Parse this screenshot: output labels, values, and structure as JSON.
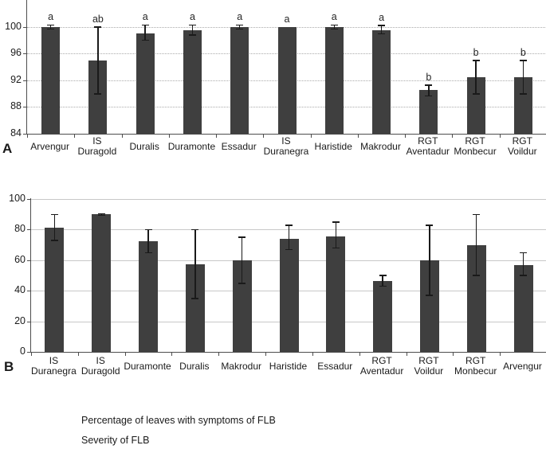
{
  "captions": [
    "Percentage of leaves with symptoms of FLB",
    "Severity of FLB"
  ],
  "colors": {
    "bar": "#3f3f3f",
    "error_bar": "#1a1a1a",
    "axis": "#4d4d4d",
    "grid_dotted": "#aaaaaa",
    "grid_solid": "#c8c8c8",
    "text": "#1a1a1a"
  },
  "chart_data": [
    {
      "type": "bar",
      "panel_label": "A",
      "title": "",
      "xlabel": "",
      "ylabel": "",
      "categories": [
        "Arvengur",
        "IS Duragold",
        "Duralis",
        "Duramonte",
        "Essadur",
        "IS Duranegra",
        "Haristide",
        "Makrodur",
        "RGT Aventadur",
        "RGT Monbecur",
        "RGT Voildur"
      ],
      "values": [
        100,
        95,
        99,
        99.5,
        100,
        100,
        100,
        99.5,
        90.5,
        92.5,
        92.5
      ],
      "errors_minus": [
        0.3,
        5,
        1,
        0.7,
        0.3,
        0,
        0.3,
        0.5,
        0.8,
        2.5,
        2.5
      ],
      "errors_plus": [
        0.3,
        5,
        1.3,
        0.8,
        0.3,
        0,
        0.3,
        0.7,
        0.8,
        2.5,
        2.5
      ],
      "letters": [
        "a",
        "ab",
        "a",
        "a",
        "a",
        "a",
        "a",
        "a",
        "b",
        "b",
        "b"
      ],
      "ylim": [
        84,
        104
      ],
      "yticks": [
        84,
        88,
        92,
        96,
        100
      ],
      "grid_style": "dotted",
      "legend_position": "none"
    },
    {
      "type": "bar",
      "panel_label": "B",
      "title": "",
      "xlabel": "",
      "ylabel": "",
      "categories": [
        "IS Duranegra",
        "IS Duragold",
        "Duramonte",
        "Duralis",
        "Makrodur",
        "Haristide",
        "Essadur",
        "RGT Aventadur",
        "RGT Voildur",
        "RGT Monbecur",
        "Arvengur"
      ],
      "values": [
        81,
        90,
        72.5,
        57.5,
        60,
        74,
        75.5,
        46.5,
        60,
        70,
        57
      ],
      "errors_minus": [
        8,
        0.5,
        7.5,
        22.5,
        15,
        7,
        7.5,
        3.5,
        23,
        20,
        7
      ],
      "errors_plus": [
        9,
        0.5,
        7.5,
        22.5,
        15,
        9,
        9.5,
        3.5,
        23,
        20,
        8
      ],
      "letters": [],
      "ylim": [
        0,
        100.5
      ],
      "yticks": [
        0,
        20,
        40,
        60,
        80,
        100
      ],
      "grid_style": "solid",
      "legend_position": "none"
    }
  ]
}
